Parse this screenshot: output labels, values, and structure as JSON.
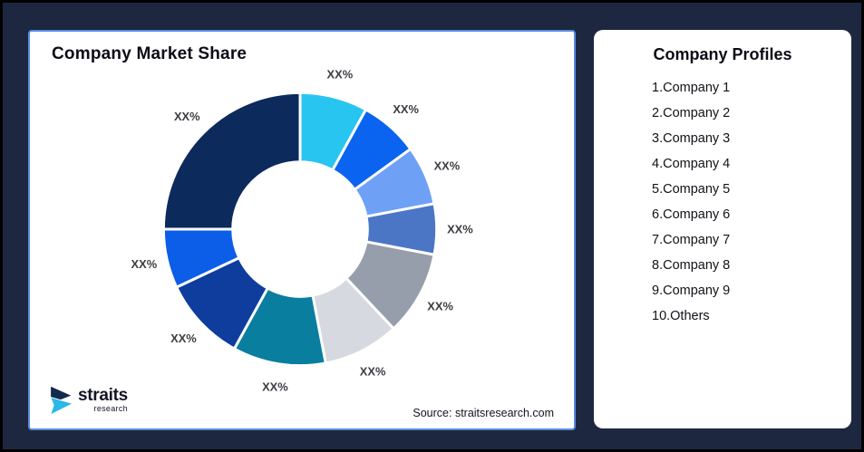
{
  "page": {
    "background_color": "#1d2840",
    "frame_border_color": "#000000"
  },
  "chart_card": {
    "title": "Company Market Share",
    "border_color": "#5b8ce0",
    "source_text": "Source: straitsresearch.com",
    "logo": {
      "brand": "straits",
      "subtitle": "research",
      "icon_navy": "#142a4e",
      "icon_cyan": "#2bb7e8"
    }
  },
  "profiles_card": {
    "title": "Company Profiles",
    "items": [
      "1.Company 1",
      "2.Company 2",
      "3.Company 3",
      "4.Company 4",
      "5.Company 5",
      "6.Company 6",
      "7.Company 7",
      "8.Company 8",
      "9.Company 9",
      "10.Others"
    ]
  },
  "chart_data": {
    "type": "pie",
    "subtype": "donut",
    "title": "Company Market Share",
    "legend": "none",
    "data_label_text": "XX%",
    "label_color": "#3c3c42",
    "start_angle_deg": 0,
    "direction": "clockwise",
    "geometry": {
      "outer_radius": 152,
      "inner_radius": 75,
      "label_radius": 178
    },
    "segments": [
      {
        "name": "Company 1",
        "label": "XX%",
        "value_pct_est": 8,
        "color": "#29C5F1"
      },
      {
        "name": "Company 2",
        "label": "XX%",
        "value_pct_est": 7,
        "color": "#0B64F0"
      },
      {
        "name": "Company 3",
        "label": "XX%",
        "value_pct_est": 7,
        "color": "#6EA1F6"
      },
      {
        "name": "Company 4",
        "label": "XX%",
        "value_pct_est": 6,
        "color": "#4A76C5"
      },
      {
        "name": "Company 5",
        "label": "XX%",
        "value_pct_est": 10,
        "color": "#979EAB"
      },
      {
        "name": "Company 6",
        "label": "XX%",
        "value_pct_est": 9,
        "color": "#D6D9DF"
      },
      {
        "name": "Company 7",
        "label": "XX%",
        "value_pct_est": 11,
        "color": "#0A7E9E"
      },
      {
        "name": "Company 8",
        "label": "XX%",
        "value_pct_est": 10,
        "color": "#0E3D9E"
      },
      {
        "name": "Company 9",
        "label": "XX%",
        "value_pct_est": 7,
        "color": "#0C5DE8"
      },
      {
        "name": "Others",
        "label": "XX%",
        "value_pct_est": 25,
        "color": "#0D2A5C"
      }
    ]
  }
}
